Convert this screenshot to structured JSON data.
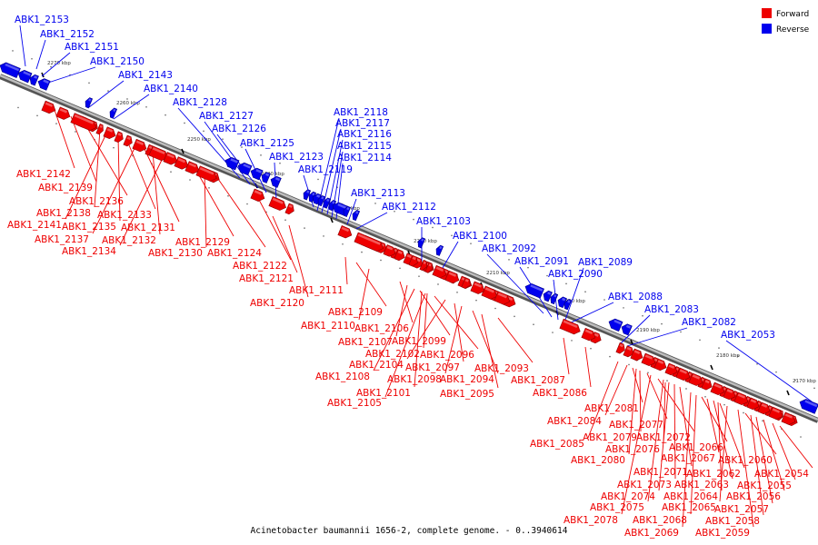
{
  "caption": "Acinetobacter baumannii 1656-2, complete genome. - 0..3940614",
  "legend": [
    {
      "label": "Forward",
      "color": "#ee0000"
    },
    {
      "label": "Reverse",
      "color": "#0000ee"
    }
  ],
  "backbone_color": "#8a8a8a",
  "ticks": [
    "2270 kbp",
    "2260 kbp",
    "2250 kbp",
    "2240 kbp",
    "2230 kbp",
    "2220 kbp",
    "2210 kbp",
    "2200 kbp",
    "2190 kbp",
    "2180 kbp",
    "2170 kbp"
  ],
  "genes": [
    {
      "label": "ABK1_2153",
      "strand": "reverse"
    },
    {
      "label": "ABK1_2152",
      "strand": "reverse"
    },
    {
      "label": "ABK1_2151",
      "strand": "reverse"
    },
    {
      "label": "ABK1_2150",
      "strand": "reverse"
    },
    {
      "label": "ABK1_2143",
      "strand": "reverse"
    },
    {
      "label": "ABK1_2140",
      "strand": "reverse"
    },
    {
      "label": "ABK1_2128",
      "strand": "reverse"
    },
    {
      "label": "ABK1_2127",
      "strand": "reverse"
    },
    {
      "label": "ABK1_2126",
      "strand": "reverse"
    },
    {
      "label": "ABK1_2125",
      "strand": "reverse"
    },
    {
      "label": "ABK1_2123",
      "strand": "reverse"
    },
    {
      "label": "ABK1_2119",
      "strand": "reverse"
    },
    {
      "label": "ABK1_2118",
      "strand": "reverse"
    },
    {
      "label": "ABK1_2117",
      "strand": "reverse"
    },
    {
      "label": "ABK1_2116",
      "strand": "reverse"
    },
    {
      "label": "ABK1_2115",
      "strand": "reverse"
    },
    {
      "label": "ABK1_2114",
      "strand": "reverse"
    },
    {
      "label": "ABK1_2113",
      "strand": "reverse"
    },
    {
      "label": "ABK1_2112",
      "strand": "reverse"
    },
    {
      "label": "ABK1_2103",
      "strand": "reverse"
    },
    {
      "label": "ABK1_2100",
      "strand": "reverse"
    },
    {
      "label": "ABK1_2092",
      "strand": "reverse"
    },
    {
      "label": "ABK1_2091",
      "strand": "reverse"
    },
    {
      "label": "ABK1_2090",
      "strand": "reverse"
    },
    {
      "label": "ABK1_2089",
      "strand": "reverse"
    },
    {
      "label": "ABK1_2088",
      "strand": "reverse"
    },
    {
      "label": "ABK1_2083",
      "strand": "reverse"
    },
    {
      "label": "ABK1_2082",
      "strand": "reverse"
    },
    {
      "label": "ABK1_2053",
      "strand": "reverse"
    },
    {
      "label": "ABK1_2142",
      "strand": "forward"
    },
    {
      "label": "ABK1_2139",
      "strand": "forward"
    },
    {
      "label": "ABK1_2136",
      "strand": "forward"
    },
    {
      "label": "ABK1_2138",
      "strand": "forward"
    },
    {
      "label": "ABK1_2141",
      "strand": "forward"
    },
    {
      "label": "ABK1_2135",
      "strand": "forward"
    },
    {
      "label": "ABK1_2133",
      "strand": "forward"
    },
    {
      "label": "ABK1_2137",
      "strand": "forward"
    },
    {
      "label": "ABK1_2131",
      "strand": "forward"
    },
    {
      "label": "ABK1_2132",
      "strand": "forward"
    },
    {
      "label": "ABK1_2134",
      "strand": "forward"
    },
    {
      "label": "ABK1_2129",
      "strand": "forward"
    },
    {
      "label": "ABK1_2130",
      "strand": "forward"
    },
    {
      "label": "ABK1_2124",
      "strand": "forward"
    },
    {
      "label": "ABK1_2122",
      "strand": "forward"
    },
    {
      "label": "ABK1_2121",
      "strand": "forward"
    },
    {
      "label": "ABK1_2111",
      "strand": "forward"
    },
    {
      "label": "ABK1_2120",
      "strand": "forward"
    },
    {
      "label": "ABK1_2109",
      "strand": "forward"
    },
    {
      "label": "ABK1_2110",
      "strand": "forward"
    },
    {
      "label": "ABK1_2106",
      "strand": "forward"
    },
    {
      "label": "ABK1_2107",
      "strand": "forward"
    },
    {
      "label": "ABK1_2099",
      "strand": "forward"
    },
    {
      "label": "ABK1_2102",
      "strand": "forward"
    },
    {
      "label": "ABK1_2096",
      "strand": "forward"
    },
    {
      "label": "ABK1_2104",
      "strand": "forward"
    },
    {
      "label": "ABK1_2097",
      "strand": "forward"
    },
    {
      "label": "ABK1_2093",
      "strand": "forward"
    },
    {
      "label": "ABK1_2108",
      "strand": "forward"
    },
    {
      "label": "ABK1_2098",
      "strand": "forward"
    },
    {
      "label": "ABK1_2094",
      "strand": "forward"
    },
    {
      "label": "ABK1_2101",
      "strand": "forward"
    },
    {
      "label": "ABK1_2095",
      "strand": "forward"
    },
    {
      "label": "ABK1_2105",
      "strand": "forward"
    },
    {
      "label": "ABK1_2087",
      "strand": "forward"
    },
    {
      "label": "ABK1_2086",
      "strand": "forward"
    },
    {
      "label": "ABK1_2084",
      "strand": "forward"
    },
    {
      "label": "ABK1_2081",
      "strand": "forward"
    },
    {
      "label": "ABK1_2077",
      "strand": "forward"
    },
    {
      "label": "ABK1_2079",
      "strand": "forward"
    },
    {
      "label": "ABK1_2072",
      "strand": "forward"
    },
    {
      "label": "ABK1_2085",
      "strand": "forward"
    },
    {
      "label": "ABK1_2076",
      "strand": "forward"
    },
    {
      "label": "ABK1_2066",
      "strand": "forward"
    },
    {
      "label": "ABK1_2080",
      "strand": "forward"
    },
    {
      "label": "ABK1_2067",
      "strand": "forward"
    },
    {
      "label": "ABK1_2060",
      "strand": "forward"
    },
    {
      "label": "ABK1_2071",
      "strand": "forward"
    },
    {
      "label": "ABK1_2062",
      "strand": "forward"
    },
    {
      "label": "ABK1_2054",
      "strand": "forward"
    },
    {
      "label": "ABK1_2073",
      "strand": "forward"
    },
    {
      "label": "ABK1_2063",
      "strand": "forward"
    },
    {
      "label": "ABK1_2055",
      "strand": "forward"
    },
    {
      "label": "ABK1_2074",
      "strand": "forward"
    },
    {
      "label": "ABK1_2064",
      "strand": "forward"
    },
    {
      "label": "ABK1_2056",
      "strand": "forward"
    },
    {
      "label": "ABK1_2075",
      "strand": "forward"
    },
    {
      "label": "ABK1_2065",
      "strand": "forward"
    },
    {
      "label": "ABK1_2057",
      "strand": "forward"
    },
    {
      "label": "ABK1_2078",
      "strand": "forward"
    },
    {
      "label": "ABK1_2068",
      "strand": "forward"
    },
    {
      "label": "ABK1_2058",
      "strand": "forward"
    },
    {
      "label": "ABK1_2069",
      "strand": "forward"
    },
    {
      "label": "ABK1_2059",
      "strand": "forward"
    }
  ]
}
